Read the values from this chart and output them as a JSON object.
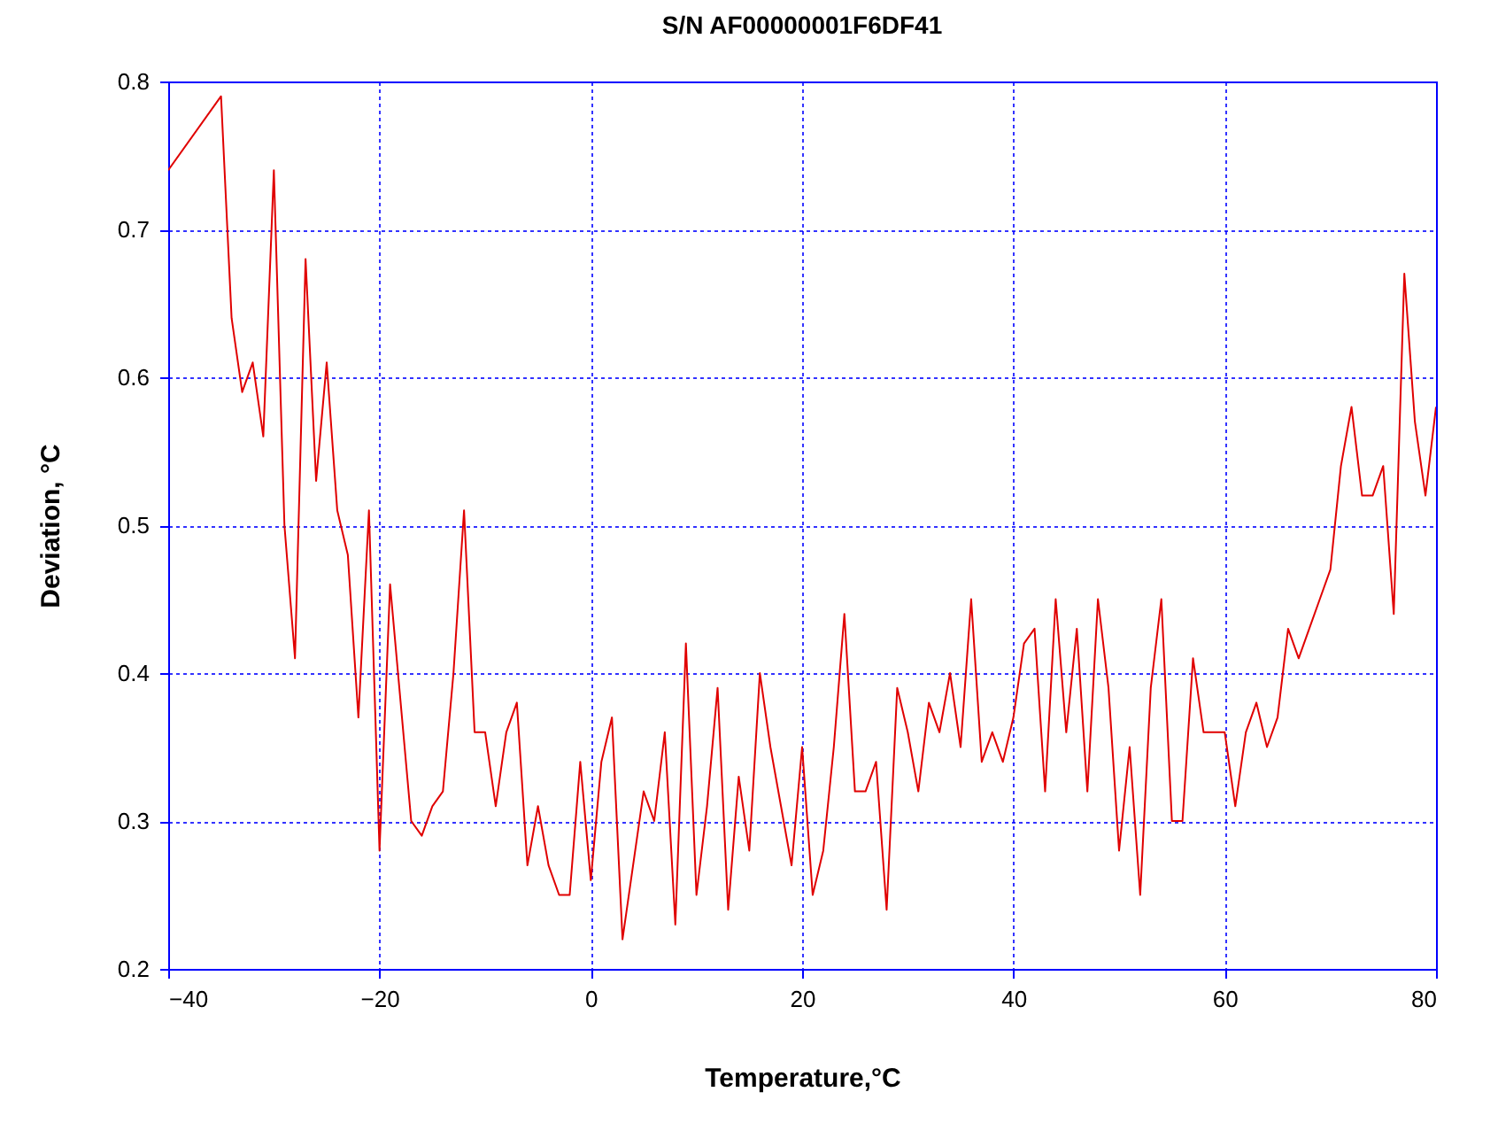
{
  "chart_data": {
    "type": "line",
    "title": "S/N AF00000001F6DF41",
    "xlabel": "Temperature,°C",
    "ylabel": "Deviation, °C",
    "x": [
      -40,
      -35,
      -34,
      -33,
      -32,
      -31,
      -30,
      -29,
      -28,
      -27,
      -26,
      -25,
      -24,
      -23,
      -22,
      -21,
      -20,
      -19,
      -18,
      -17,
      -16,
      -15,
      -14,
      -13,
      -12,
      -11,
      -10,
      -9,
      -8,
      -7,
      -6,
      -5,
      -4,
      -3,
      -2,
      -1,
      0,
      1,
      2,
      3,
      4,
      5,
      6,
      7,
      8,
      9,
      10,
      11,
      12,
      13,
      14,
      15,
      16,
      17,
      18,
      19,
      20,
      21,
      22,
      23,
      24,
      25,
      26,
      27,
      28,
      29,
      30,
      31,
      32,
      33,
      34,
      35,
      36,
      37,
      38,
      39,
      40,
      41,
      42,
      43,
      44,
      45,
      46,
      47,
      48,
      49,
      50,
      51,
      52,
      53,
      54,
      55,
      56,
      57,
      58,
      59,
      60,
      61,
      62,
      63,
      64,
      65,
      66,
      67,
      68,
      69,
      70,
      71,
      72,
      73,
      74,
      75,
      76,
      77,
      78,
      79,
      80
    ],
    "series": [
      {
        "color": "#e00000",
        "values": [
          0.74,
          0.79,
          0.64,
          0.59,
          0.61,
          0.56,
          0.74,
          0.5,
          0.41,
          0.68,
          0.53,
          0.61,
          0.51,
          0.48,
          0.37,
          0.51,
          0.28,
          0.46,
          0.38,
          0.3,
          0.29,
          0.31,
          0.32,
          0.4,
          0.51,
          0.36,
          0.36,
          0.31,
          0.36,
          0.38,
          0.27,
          0.31,
          0.27,
          0.25,
          0.25,
          0.34,
          0.26,
          0.34,
          0.37,
          0.22,
          0.27,
          0.32,
          0.3,
          0.36,
          0.23,
          0.42,
          0.25,
          0.31,
          0.39,
          0.24,
          0.33,
          0.28,
          0.4,
          0.35,
          0.31,
          0.27,
          0.35,
          0.25,
          0.28,
          0.35,
          0.44,
          0.32,
          0.32,
          0.34,
          0.24,
          0.39,
          0.36,
          0.32,
          0.38,
          0.36,
          0.4,
          0.35,
          0.45,
          0.34,
          0.36,
          0.34,
          0.37,
          0.42,
          0.43,
          0.32,
          0.45,
          0.36,
          0.43,
          0.32,
          0.45,
          0.39,
          0.28,
          0.35,
          0.25,
          0.39,
          0.45,
          0.3,
          0.3,
          0.41,
          0.36,
          0.36,
          0.36,
          0.31,
          0.36,
          0.38,
          0.35,
          0.37,
          0.43,
          0.41,
          0.43,
          0.45,
          0.47,
          0.54,
          0.58,
          0.52,
          0.52,
          0.54,
          0.44,
          0.67,
          0.57,
          0.52,
          0.58
        ]
      }
    ],
    "xlim": [
      -40,
      80
    ],
    "xticks": [
      -40,
      -20,
      0,
      20,
      40,
      60,
      80
    ],
    "ylim": [
      0.2,
      0.8
    ],
    "yticks": [
      0.2,
      0.3,
      0.4,
      0.5,
      0.6,
      0.7,
      0.8
    ],
    "grid": true,
    "line_style": "solid",
    "marker": "none"
  }
}
